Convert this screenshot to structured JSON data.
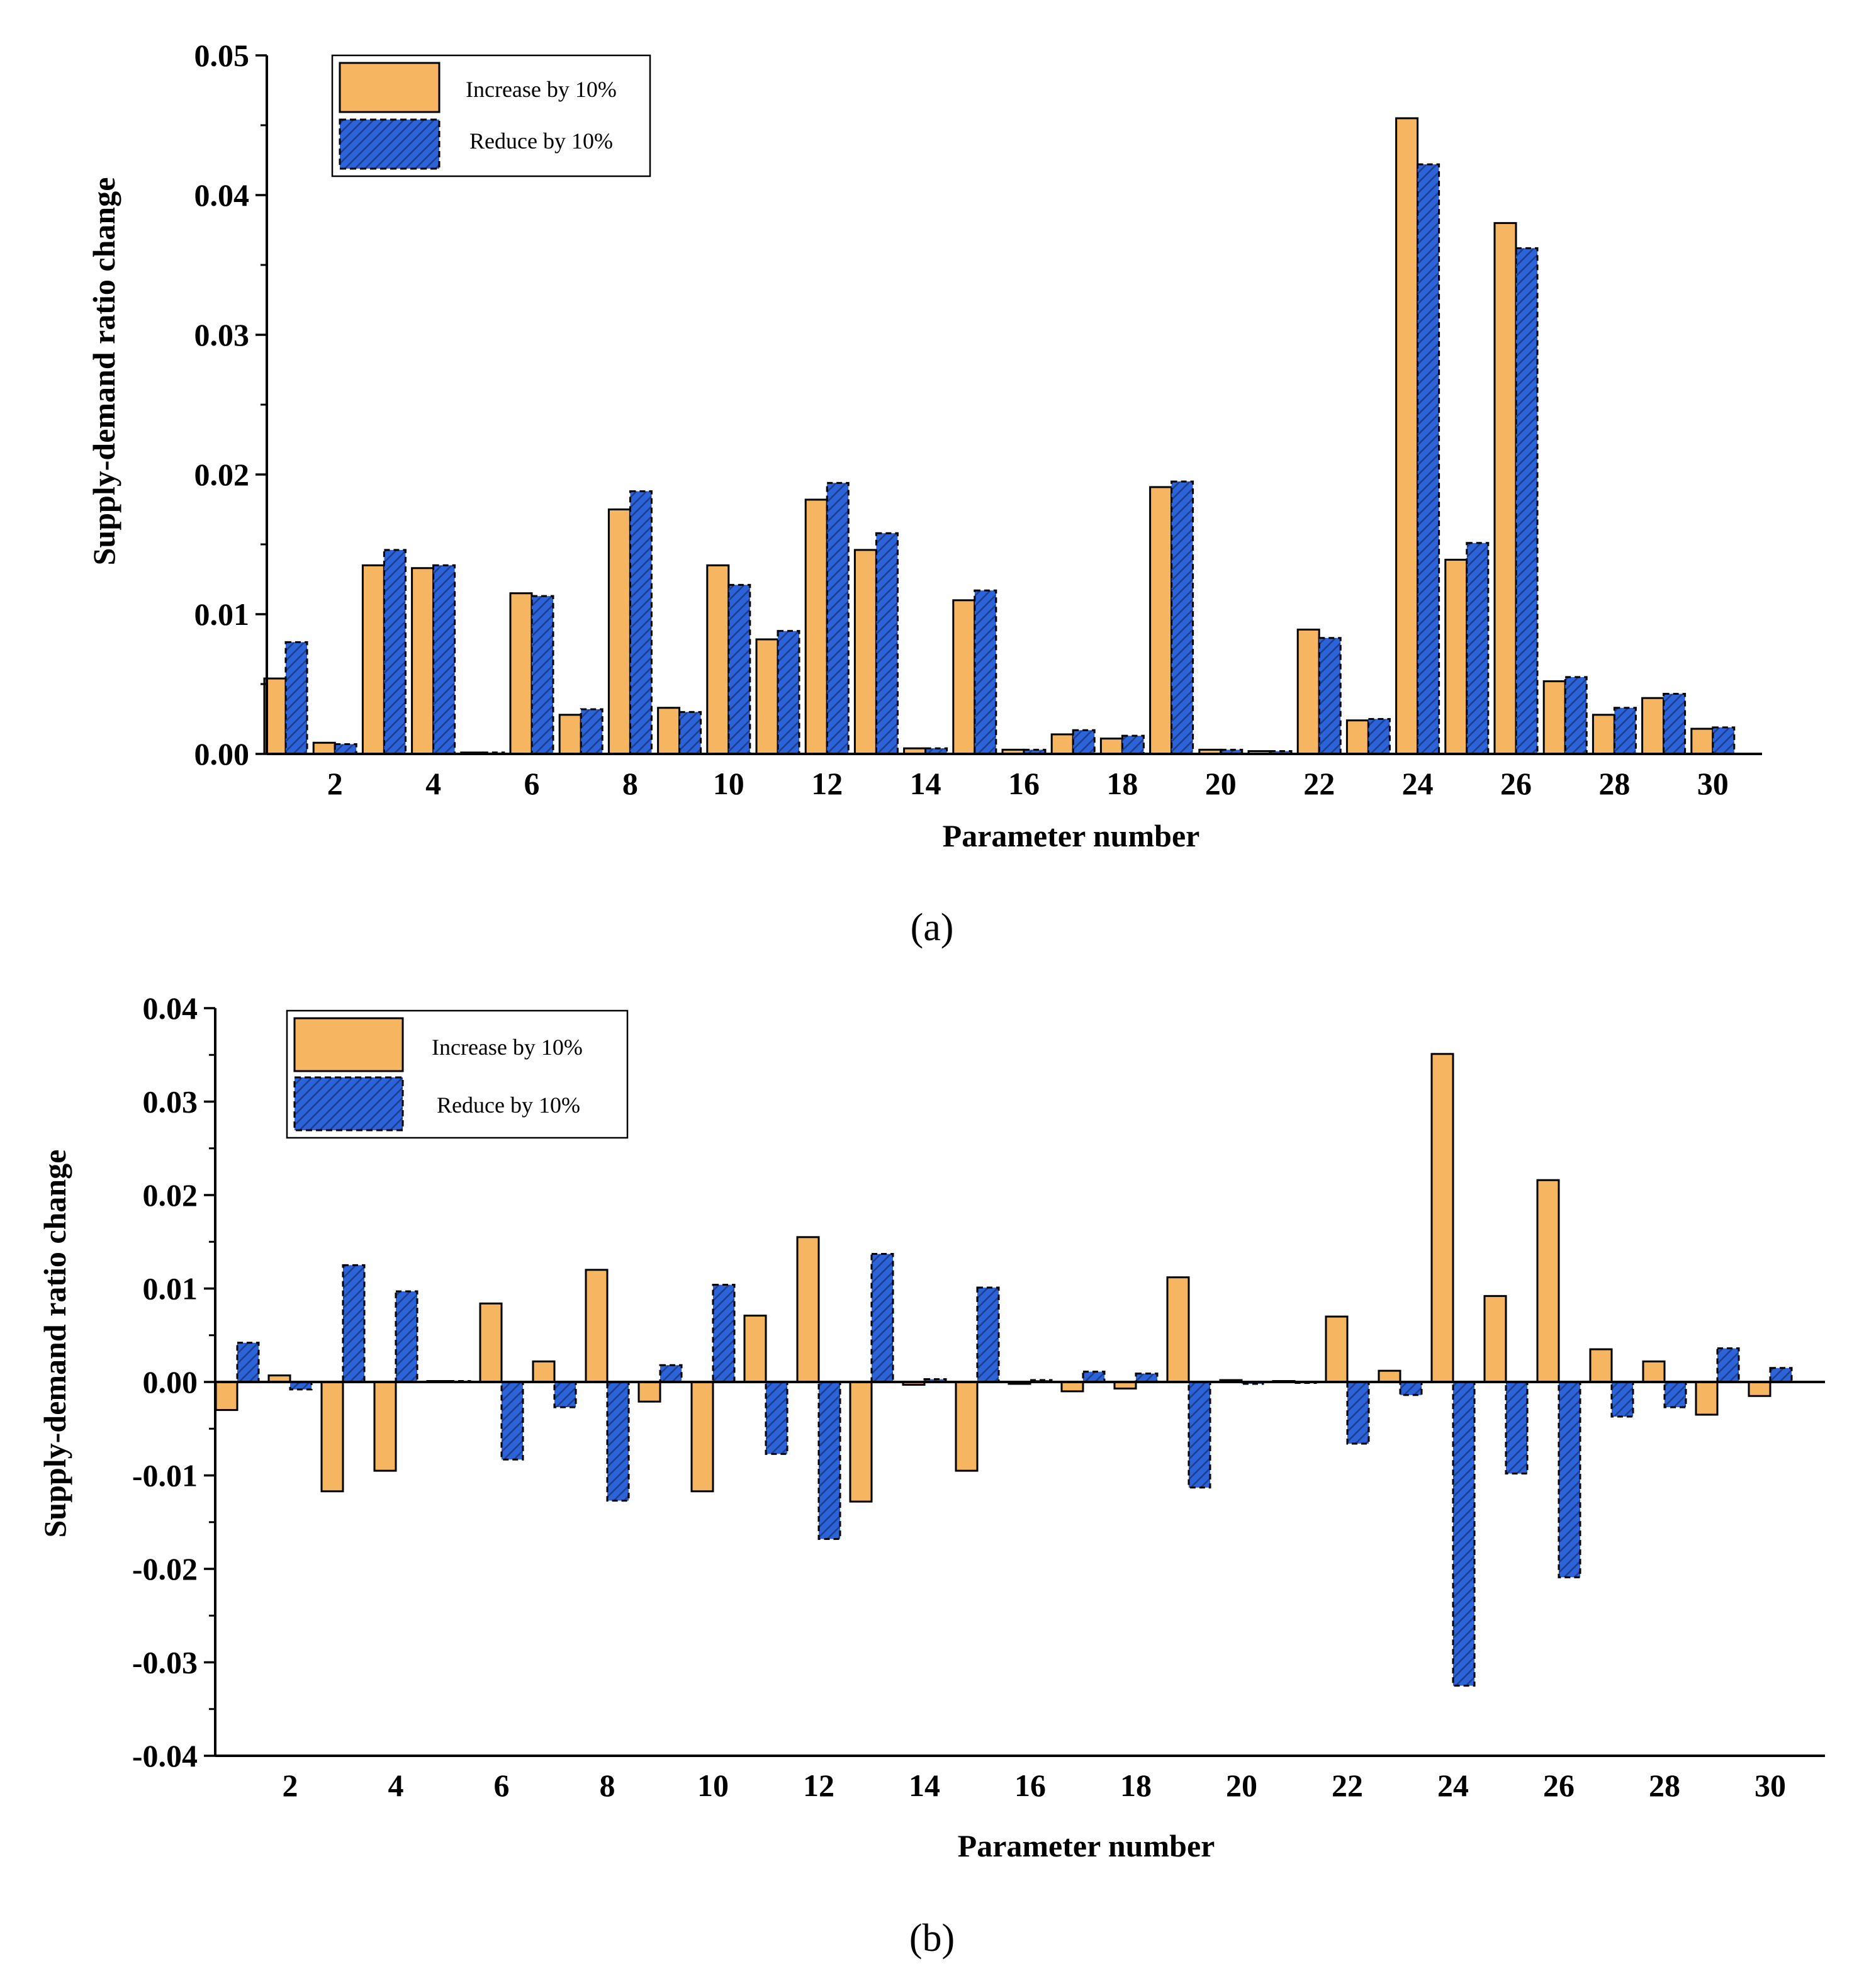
{
  "colors": {
    "increase": "#F5B561",
    "reduce": "#2D63D8",
    "stroke": "#000000"
  },
  "chart_data": [
    {
      "type": "bar",
      "panel_label": "(a)",
      "title": "",
      "xlabel": "Parameter number",
      "ylabel": "Supply-demand ratio change",
      "ylim": [
        0,
        0.05
      ],
      "y_ticks": [
        "0.00",
        "0.01",
        "0.02",
        "0.03",
        "0.04",
        "0.05"
      ],
      "y_tick_values": [
        0,
        0.01,
        0.02,
        0.03,
        0.04,
        0.05
      ],
      "x_ticks": [
        "2",
        "4",
        "6",
        "8",
        "10",
        "12",
        "14",
        "16",
        "18",
        "20",
        "22",
        "24",
        "26",
        "28",
        "30"
      ],
      "categories": [
        1,
        2,
        3,
        4,
        5,
        6,
        7,
        8,
        9,
        10,
        11,
        12,
        13,
        14,
        15,
        16,
        17,
        18,
        19,
        20,
        21,
        22,
        23,
        24,
        25,
        26,
        27,
        28,
        29,
        30
      ],
      "legend_position": "top-left",
      "series": [
        {
          "name": "Increase by 10%",
          "values": [
            0.0054,
            0.0008,
            0.0135,
            0.0133,
            0.0001,
            0.0115,
            0.0028,
            0.0175,
            0.0033,
            0.0135,
            0.0082,
            0.0182,
            0.0146,
            0.0004,
            0.011,
            0.0003,
            0.0014,
            0.0011,
            0.0191,
            0.0003,
            0.0002,
            0.0089,
            0.0024,
            0.0455,
            0.0139,
            0.038,
            0.0052,
            0.0028,
            0.004,
            0.0018
          ]
        },
        {
          "name": "Reduce by 10%",
          "values": [
            0.008,
            0.0007,
            0.0146,
            0.0135,
            0.0001,
            0.0113,
            0.0032,
            0.0188,
            0.003,
            0.0121,
            0.0088,
            0.0194,
            0.0158,
            0.0004,
            0.0117,
            0.0003,
            0.0017,
            0.0013,
            0.0195,
            0.0003,
            0.0002,
            0.0083,
            0.0025,
            0.0422,
            0.0151,
            0.0362,
            0.0055,
            0.0033,
            0.0043,
            0.0019
          ]
        }
      ]
    },
    {
      "type": "bar",
      "panel_label": "(b)",
      "title": "",
      "xlabel": "Parameter number",
      "ylabel": "Supply-demand ratio change",
      "ylim": [
        -0.04,
        0.04
      ],
      "y_ticks": [
        "-0.04",
        "-0.03",
        "-0.02",
        "-0.01",
        "0.00",
        "0.01",
        "0.02",
        "0.03",
        "0.04"
      ],
      "y_tick_values": [
        -0.04,
        -0.03,
        -0.02,
        -0.01,
        0,
        0.01,
        0.02,
        0.03,
        0.04
      ],
      "x_ticks": [
        "2",
        "4",
        "6",
        "8",
        "10",
        "12",
        "14",
        "16",
        "18",
        "20",
        "22",
        "24",
        "26",
        "28",
        "30"
      ],
      "categories": [
        1,
        2,
        3,
        4,
        5,
        6,
        7,
        8,
        9,
        10,
        11,
        12,
        13,
        14,
        15,
        16,
        17,
        18,
        19,
        20,
        21,
        22,
        23,
        24,
        25,
        26,
        27,
        28,
        29,
        30
      ],
      "legend_position": "top-left",
      "series": [
        {
          "name": "Increase by 10%",
          "values": [
            -0.003,
            0.0007,
            -0.0117,
            -0.0095,
            0.0001,
            0.0084,
            0.0022,
            0.012,
            -0.0021,
            -0.0117,
            0.0071,
            0.0155,
            -0.0128,
            -0.0003,
            -0.0095,
            -0.0002,
            -0.001,
            -0.0007,
            0.0112,
            0.0002,
            0.0001,
            0.007,
            0.0012,
            0.0351,
            0.0092,
            0.0216,
            0.0035,
            0.0022,
            -0.0035,
            -0.0015
          ]
        },
        {
          "name": "Reduce by 10%",
          "values": [
            0.0042,
            -0.0008,
            0.0125,
            0.0097,
            0.0001,
            -0.0083,
            -0.0027,
            -0.0127,
            0.0018,
            0.0104,
            -0.0077,
            -0.0168,
            0.0137,
            0.0003,
            0.0101,
            0.0002,
            0.0011,
            0.0009,
            -0.0113,
            -0.0002,
            -0.0001,
            -0.0066,
            -0.0014,
            -0.0325,
            -0.0098,
            -0.0209,
            -0.0037,
            -0.0027,
            0.0036,
            0.0015
          ]
        }
      ]
    }
  ]
}
